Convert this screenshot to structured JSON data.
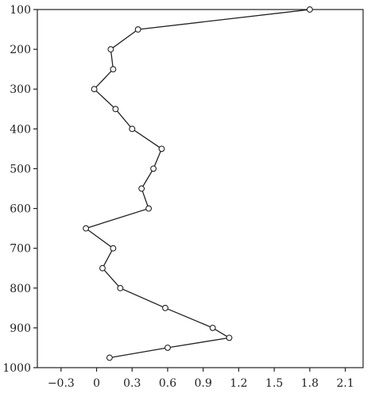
{
  "chart_data": {
    "type": "line",
    "title": "",
    "xlabel": "",
    "ylabel": "",
    "xlim": [
      -0.5,
      2.25
    ],
    "ylim": [
      100,
      1000
    ],
    "y_inverted": true,
    "grid": false,
    "legend": "none",
    "x_ticks": [
      -0.3,
      0,
      0.3,
      0.6,
      0.9,
      1.2,
      1.5,
      1.8,
      2.1
    ],
    "x_tick_labels": [
      "−0.3",
      "0",
      "0.3",
      "0.6",
      "0.9",
      "1.2",
      "1.5",
      "1.8",
      "2.1"
    ],
    "y_ticks": [
      100,
      200,
      300,
      400,
      500,
      600,
      700,
      800,
      900,
      1000
    ],
    "y_tick_labels": [
      "100",
      "200",
      "300",
      "400",
      "500",
      "600",
      "700",
      "800",
      "900",
      "1000"
    ],
    "series": [
      {
        "marker": "open-circle",
        "color": "#222222",
        "points": [
          {
            "x": 1.8,
            "y": 100
          },
          {
            "x": 0.35,
            "y": 150
          },
          {
            "x": 0.12,
            "y": 200
          },
          {
            "x": 0.14,
            "y": 250
          },
          {
            "x": -0.02,
            "y": 300
          },
          {
            "x": 0.16,
            "y": 350
          },
          {
            "x": 0.3,
            "y": 400
          },
          {
            "x": 0.55,
            "y": 450
          },
          {
            "x": 0.48,
            "y": 500
          },
          {
            "x": 0.38,
            "y": 550
          },
          {
            "x": 0.44,
            "y": 600
          },
          {
            "x": -0.09,
            "y": 650
          },
          {
            "x": 0.14,
            "y": 700
          },
          {
            "x": 0.05,
            "y": 750
          },
          {
            "x": 0.2,
            "y": 800
          },
          {
            "x": 0.58,
            "y": 850
          },
          {
            "x": 0.98,
            "y": 900
          },
          {
            "x": 1.12,
            "y": 925
          },
          {
            "x": 0.6,
            "y": 950
          },
          {
            "x": 0.11,
            "y": 975
          }
        ]
      }
    ]
  }
}
